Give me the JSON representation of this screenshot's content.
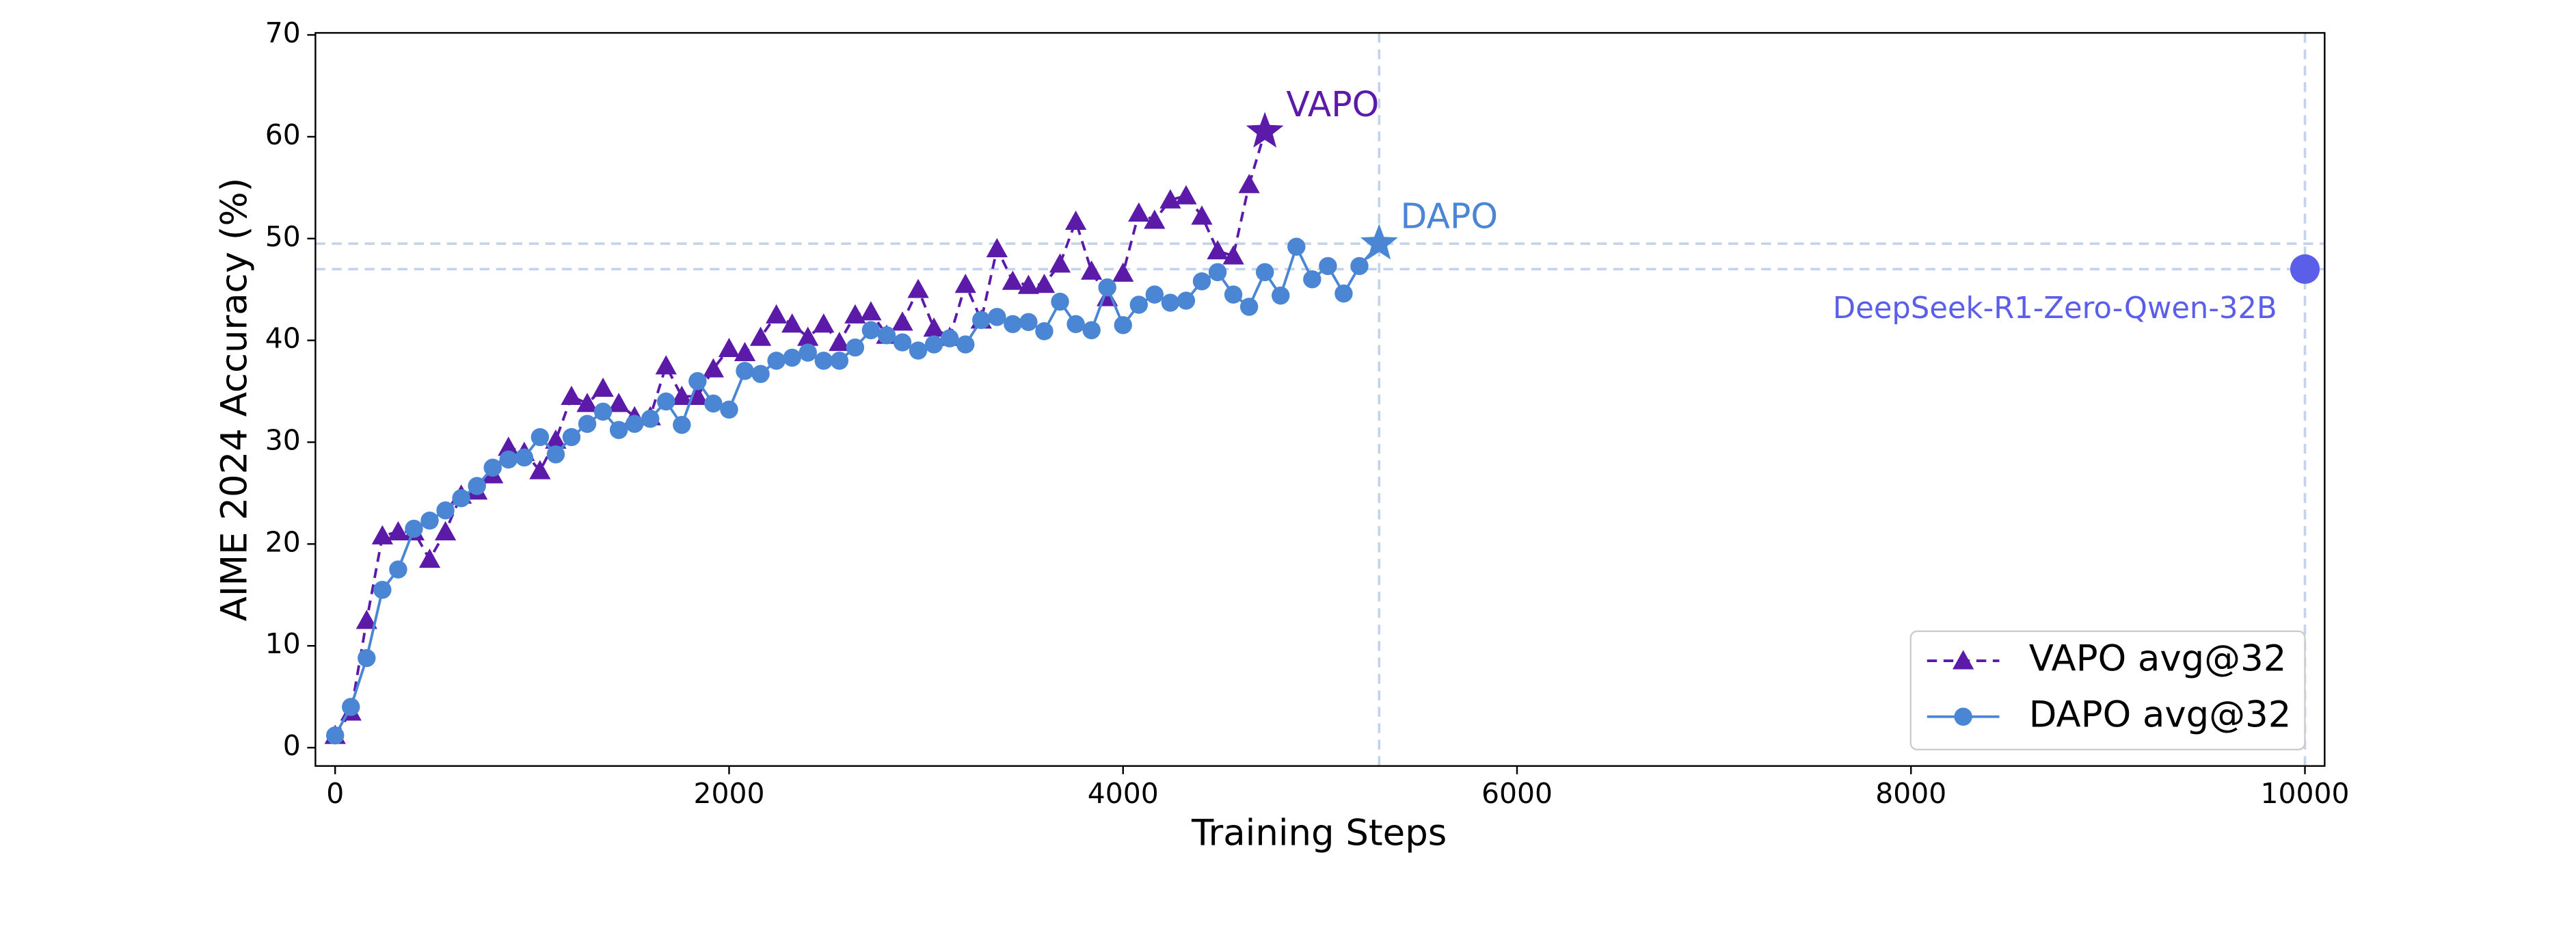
{
  "chart_data": {
    "type": "line",
    "xlabel": "Training Steps",
    "ylabel": "AIME 2024 Accuracy (%)",
    "xlim": [
      -100,
      10100
    ],
    "ylim": [
      -1.8,
      70.2
    ],
    "xticks": [
      0,
      2000,
      4000,
      6000,
      8000,
      10000
    ],
    "yticks": [
      0,
      10,
      20,
      30,
      40,
      50,
      60,
      70
    ],
    "legend": "lower right",
    "series": [
      {
        "name": "VAPO avg@32",
        "color": "#5b1aa8",
        "marker": "triangle",
        "linestyle": "dashed",
        "x": [
          0,
          80,
          160,
          240,
          320,
          400,
          480,
          560,
          640,
          720,
          800,
          880,
          960,
          1040,
          1120,
          1200,
          1280,
          1360,
          1440,
          1520,
          1600,
          1680,
          1760,
          1840,
          1920,
          2000,
          2080,
          2160,
          2240,
          2320,
          2400,
          2480,
          2560,
          2640,
          2720,
          2800,
          2880,
          2960,
          3040,
          3120,
          3200,
          3280,
          3360,
          3440,
          3520,
          3600,
          3680,
          3760,
          3840,
          3920,
          4000,
          4080,
          4160,
          4240,
          4320,
          4400,
          4480,
          4560,
          4640
        ],
        "values": [
          1.2,
          3.5,
          12.5,
          20.8,
          21.2,
          21.2,
          18.5,
          21.2,
          24.8,
          25.2,
          26.8,
          29.5,
          29,
          27.2,
          30.2,
          34.5,
          33.8,
          35.3,
          33.8,
          32.5,
          32.5,
          37.5,
          34.5,
          34.5,
          37.2,
          39.2,
          38.8,
          40.3,
          42.5,
          41.6,
          40.3,
          41.6,
          39.8,
          42.5,
          42.8,
          40.5,
          41.8,
          45,
          41.2,
          40.3,
          45.5,
          42,
          49,
          45.8,
          45.4,
          45.5,
          47.5,
          51.7,
          46.8,
          44.2,
          46.6,
          52.5,
          51.8,
          53.8,
          54.2,
          52.2,
          48.8,
          48.3,
          55.3
        ]
      },
      {
        "name": "DAPO avg@32",
        "color": "#4a86d4",
        "marker": "circle",
        "linestyle": "solid",
        "x": [
          0,
          80,
          160,
          240,
          320,
          400,
          480,
          560,
          640,
          720,
          800,
          880,
          960,
          1040,
          1120,
          1200,
          1280,
          1360,
          1440,
          1520,
          1600,
          1680,
          1760,
          1840,
          1920,
          2000,
          2080,
          2160,
          2240,
          2320,
          2400,
          2480,
          2560,
          2640,
          2720,
          2800,
          2880,
          2960,
          3040,
          3120,
          3200,
          3280,
          3360,
          3440,
          3520,
          3600,
          3680,
          3760,
          3840,
          3920,
          4000,
          4080,
          4160,
          4240,
          4320,
          4400,
          4480,
          4560,
          4640,
          4720,
          4800,
          4880,
          4960,
          5040,
          5120,
          5200
        ],
        "values": [
          1.2,
          4,
          8.8,
          15.5,
          17.5,
          21.5,
          22.3,
          23.3,
          24.5,
          25.7,
          27.5,
          28.3,
          28.5,
          30.5,
          28.8,
          30.5,
          31.8,
          33,
          31.2,
          31.8,
          32.3,
          34,
          31.7,
          36,
          33.8,
          33.2,
          37,
          36.7,
          38,
          38.3,
          38.8,
          38,
          38,
          39.3,
          41,
          40.5,
          39.8,
          39,
          39.6,
          40.2,
          39.6,
          42,
          42.3,
          41.6,
          41.8,
          40.9,
          43.8,
          41.6,
          41,
          45.2,
          41.5,
          43.5,
          44.5,
          43.7,
          43.9,
          45.8,
          46.7,
          44.5,
          43.3,
          46.7,
          44.4,
          49.2,
          46,
          47.3,
          44.6,
          47.3
        ]
      }
    ],
    "annotations": [
      {
        "text": "VAPO",
        "x": 4720,
        "y": 60.5,
        "color": "#5b1aa8",
        "marker": "star",
        "series": 0
      },
      {
        "text": "DAPO",
        "x": 5300,
        "y": 49.5,
        "color": "#4a86d4",
        "marker": "star",
        "series": 1
      },
      {
        "text": "DeepSeek-R1-Zero-Qwen-32B",
        "x": 10000,
        "y": 47,
        "color": "#5a5ee8",
        "marker": "circle"
      }
    ],
    "hlines": [
      49.5,
      47
    ],
    "vlines": [
      5300,
      10000
    ],
    "refline_color": "#c5d3ea"
  }
}
